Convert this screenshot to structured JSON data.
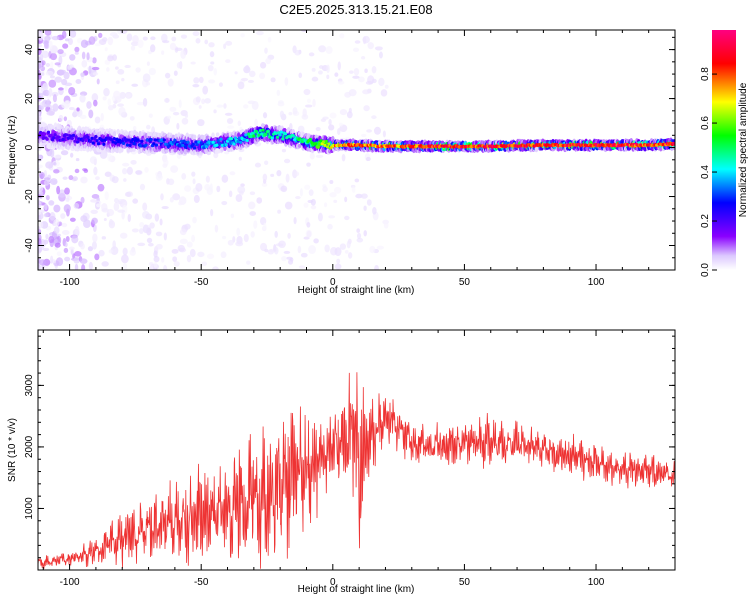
{
  "title": "C2E5.2025.313.15.21.E08",
  "chart_data": [
    {
      "type": "heatmap",
      "xlabel": "Height of straight line (km)",
      "ylabel": "Frequency (Hz)",
      "xlim": [
        -112,
        130
      ],
      "ylim": [
        -50,
        48
      ],
      "xticks": [
        "-100",
        "-50",
        "0",
        "50",
        "100"
      ],
      "yticks": [
        "-40",
        "-20",
        "0",
        "20",
        "40"
      ],
      "colorbar": {
        "label": "Normalized spectral amplitude",
        "range": [
          0,
          0.98
        ],
        "ticks": [
          "0.0",
          "0.2",
          "0.4",
          "0.6",
          "0.8"
        ],
        "colors": [
          "#ffffff",
          "#dcc8ff",
          "#8a00ff",
          "#0000ff",
          "#00ffff",
          "#00ff00",
          "#ffff00",
          "#ff0000",
          "#ff0080"
        ]
      },
      "ridge": {
        "x": [
          -110,
          -90,
          -70,
          -50,
          -35,
          -28,
          -20,
          -10,
          0,
          10,
          20,
          40,
          60,
          80,
          100,
          120,
          130
        ],
        "frequency": [
          5,
          3,
          2,
          1,
          3,
          6,
          5,
          2,
          1,
          1,
          0.5,
          0.5,
          0.5,
          1,
          1,
          1,
          1.5
        ],
        "peak_amplitude": [
          0.3,
          0.35,
          0.4,
          0.45,
          0.5,
          0.6,
          0.55,
          0.6,
          0.8,
          0.85,
          0.85,
          0.9,
          0.9,
          0.9,
          0.92,
          0.9,
          0.9
        ]
      }
    },
    {
      "type": "line",
      "xlabel": "Height of straight line (km)",
      "ylabel": "SNR (10 * v/v)",
      "xlim": [
        -112,
        130
      ],
      "ylim": [
        0,
        3900
      ],
      "xticks": [
        "-100",
        "-50",
        "0",
        "50",
        "100"
      ],
      "yticks": [
        "1000",
        "2000",
        "3000"
      ],
      "color": "#ee3333",
      "envelope": {
        "x": [
          -112,
          -100,
          -90,
          -80,
          -70,
          -60,
          -50,
          -40,
          -35,
          -30,
          -25,
          -20,
          -15,
          -10,
          -5,
          0,
          5,
          8,
          10,
          12,
          15,
          20,
          25,
          30,
          40,
          50,
          60,
          70,
          80,
          90,
          100,
          110,
          120,
          130
        ],
        "mean": [
          120,
          180,
          300,
          500,
          650,
          800,
          900,
          1000,
          1100,
          1200,
          1300,
          1400,
          1450,
          1600,
          1800,
          2000,
          2100,
          2400,
          1700,
          2000,
          2200,
          2500,
          2300,
          2100,
          2000,
          2050,
          2100,
          2050,
          1950,
          1850,
          1750,
          1650,
          1600,
          1550
        ],
        "amplitude": [
          100,
          150,
          250,
          450,
          600,
          700,
          800,
          1000,
          1200,
          1300,
          1300,
          1400,
          1300,
          1100,
          800,
          700,
          800,
          1400,
          1600,
          900,
          700,
          500,
          500,
          450,
          400,
          400,
          450,
          400,
          400,
          350,
          350,
          300,
          300,
          300
        ]
      }
    }
  ]
}
